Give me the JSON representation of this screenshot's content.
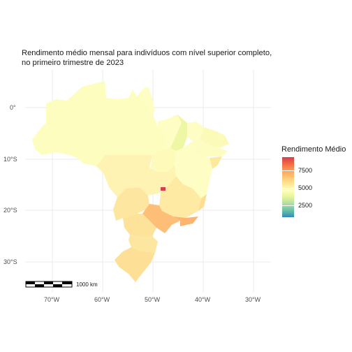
{
  "title": {
    "line1": "Rendimento médio mensal para indivíduos com nível superior completo,",
    "line2": "no primeiro trimestre de 2023"
  },
  "legend": {
    "title": "Rendimento Médio",
    "ticks": [
      "7500",
      "5000",
      "2500"
    ],
    "colors": [
      "#d53e4f",
      "#fdae61",
      "#ffffbf",
      "#abdda4",
      "#3288bd"
    ]
  },
  "axes": {
    "y": [
      "0°",
      "10°S",
      "20°S",
      "30°S"
    ],
    "x": [
      "70°W",
      "60°W",
      "50°W",
      "40°W",
      "30°W"
    ]
  },
  "scale_bar": {
    "label": "1000 km"
  },
  "regions": [
    {
      "name": "north",
      "color": "#fdfdc0"
    },
    {
      "name": "amapa",
      "color": "#fefec4"
    },
    {
      "name": "mato-grosso",
      "color": "#fef3b3"
    },
    {
      "name": "maranhao",
      "color": "#fefec4"
    },
    {
      "name": "piaui",
      "color": "#edf7a4"
    },
    {
      "name": "ceara",
      "color": "#fefec4"
    },
    {
      "name": "rn-pb",
      "color": "#fcfab8"
    },
    {
      "name": "pernambuco",
      "color": "#fdfdc2"
    },
    {
      "name": "al-se",
      "color": "#fde99c"
    },
    {
      "name": "bahia",
      "color": "#fefec4"
    },
    {
      "name": "tocantins",
      "color": "#fefaba"
    },
    {
      "name": "goias",
      "color": "#fef3b3"
    },
    {
      "name": "distrito-federal",
      "color": "#d53e4f"
    },
    {
      "name": "minas-gerais",
      "color": "#feeaa2"
    },
    {
      "name": "espirito-santo",
      "color": "#fdde92"
    },
    {
      "name": "mato-grosso-do-sul",
      "color": "#fde7a0"
    },
    {
      "name": "sao-paulo",
      "color": "#fdbf78"
    },
    {
      "name": "rio-de-janeiro",
      "color": "#fdb46f"
    },
    {
      "name": "parana",
      "color": "#fde29a"
    },
    {
      "name": "santa-catarina",
      "color": "#fde7a0"
    },
    {
      "name": "rio-grande-do-sul",
      "color": "#fddf96"
    }
  ]
}
